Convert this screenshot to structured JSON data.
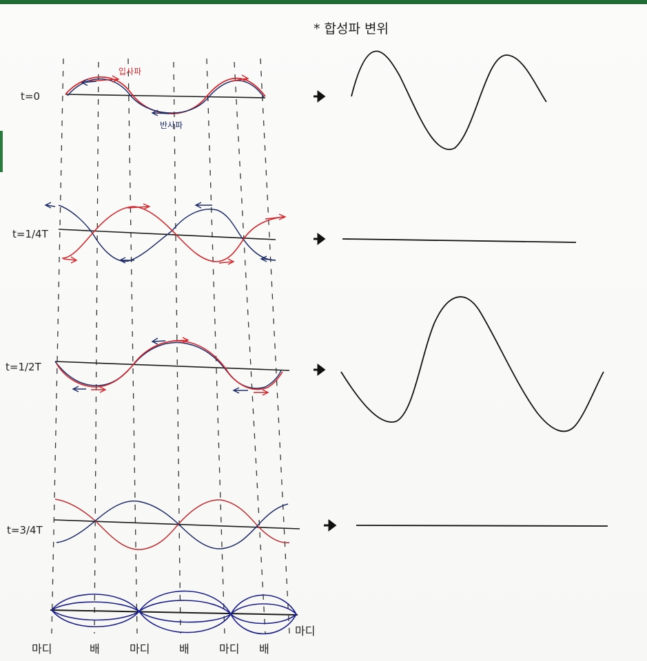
{
  "title": "* 합성파 변위",
  "rows": [
    {
      "label": "t=0",
      "result": "wave",
      "annotations": {
        "incident": "입사파",
        "reflected": "반사파"
      }
    },
    {
      "label": "t=1/4T",
      "result": "flat"
    },
    {
      "label": "t=1/2T",
      "result": "wave"
    },
    {
      "label": "t=3/4T",
      "result": "flat"
    }
  ],
  "node_labels": [
    "마디",
    "배",
    "마디",
    "배",
    "마디",
    "배",
    "마디"
  ],
  "colors": {
    "incident": "#d4262b",
    "reflected": "#1d2b66",
    "standing": "#1b1f8a",
    "ink": "#1a1a1a"
  }
}
